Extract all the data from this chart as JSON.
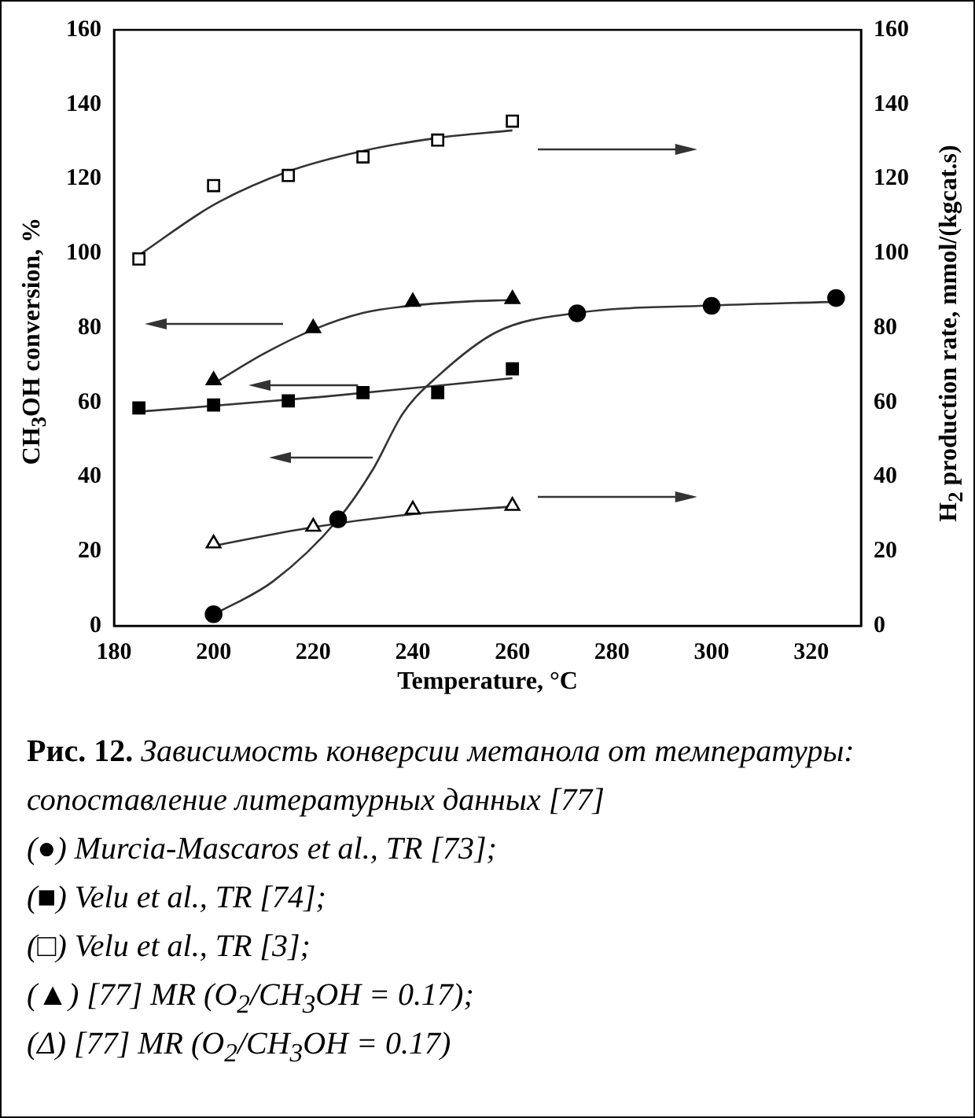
{
  "chart_data": {
    "type": "scatter",
    "xlabel": "Temperature, °C",
    "ylabel": "CH$_{3}$OH conversion, %",
    "y2label": "H$_{2}$ production rate, mmol/(kgcat.s)",
    "xlim": [
      180,
      330
    ],
    "xticks": [
      180,
      200,
      220,
      240,
      260,
      280,
      300,
      320
    ],
    "ylim": [
      0,
      160
    ],
    "yticks": [
      0,
      20,
      40,
      60,
      80,
      100,
      120,
      140,
      160
    ],
    "y2lim": [
      0,
      160
    ],
    "y2ticks": [
      0,
      20,
      40,
      60,
      80,
      100,
      120,
      140,
      160
    ],
    "series": [
      {
        "marker": "circle",
        "color": "#000000",
        "x": [
          200,
          225,
          273,
          300,
          325
        ],
        "values": [
          3.1,
          28.6,
          83.9,
          85.9,
          88
        ]
      },
      {
        "marker": "square",
        "color": "#000000",
        "x": [
          185,
          200,
          215,
          230,
          245,
          260
        ],
        "values": [
          58.5,
          59.3,
          60.4,
          62.6,
          62.6,
          69
        ]
      },
      {
        "marker": "square",
        "axis": "y2",
        "color": "#000000",
        "x": [
          185,
          200,
          215,
          230,
          245,
          260
        ],
        "values": [
          98.5,
          118.2,
          120.9,
          125.9,
          130.4,
          135.5
        ]
      },
      {
        "marker": "triangle",
        "color": "#000000",
        "x": [
          200,
          220,
          240,
          260
        ],
        "values": [
          65.9,
          79.9,
          87,
          87.7
        ]
      },
      {
        "marker": "triangle",
        "axis": "y2",
        "color": "#000000",
        "x": [
          200,
          220,
          240,
          260
        ],
        "values": [
          22.1,
          26.6,
          31.2,
          32.2
        ]
      },
      {
        "type": "line",
        "marker": "none",
        "color": "#333333",
        "x": [
          200,
          212,
          225,
          232,
          238,
          245,
          257,
          273,
          300,
          325
        ],
        "values": [
          3,
          12,
          28.6,
          42,
          57,
          67,
          79,
          84,
          86,
          87
        ]
      },
      {
        "type": "line",
        "marker": "none",
        "color": "#333333",
        "x": [
          185,
          222,
          260
        ],
        "values": [
          57.5,
          61.5,
          66.5
        ]
      },
      {
        "type": "line",
        "marker": "none",
        "axis": "y2",
        "color": "#333333",
        "x": [
          185,
          200,
          215,
          230,
          245,
          260
        ],
        "values": [
          99.5,
          113,
          122,
          127.5,
          131,
          133
        ]
      },
      {
        "type": "line",
        "marker": "none",
        "color": "#333333",
        "x": [
          200,
          210,
          220,
          230,
          240,
          250,
          260
        ],
        "values": [
          65,
          73,
          79.5,
          84,
          86,
          87,
          87.5
        ]
      },
      {
        "type": "line",
        "marker": "none",
        "axis": "y2",
        "color": "#333333",
        "x": [
          200,
          220,
          240,
          260
        ],
        "values": [
          21.5,
          26.5,
          30,
          32
        ]
      }
    ],
    "annotations": [
      "Рис. 12. Зависимость конверсии метанола от температуры: сопоставление литературных данных [77]",
      "(●) Murcia-Mascaros et al., TR [73];",
      "(■) Velu et al., TR [74];",
      "(□) Velu et al., TR [3];",
      "(▲) [77] MR (O$_{2}$/CH$_{3}$OH = 0.17);",
      "(Δ) [77] MR (O$_{2}$/CH$_{3}$OH = 0.17)"
    ]
  }
}
